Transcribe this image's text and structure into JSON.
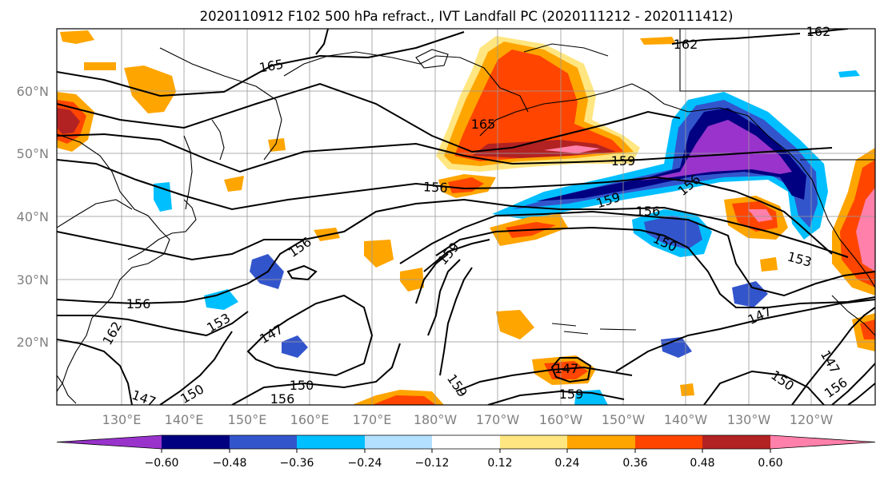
{
  "title": "2020110912 F102 500 hPa refract., IVT Landfall PC (2020111212 - 2020111412)",
  "lat_labels": [
    "60°N",
    "50°N",
    "40°N",
    "30°N",
    "20°N"
  ],
  "lon_labels": [
    "130°E",
    "140°E",
    "150°E",
    "160°E",
    "170°E",
    "180°W",
    "170°W",
    "160°W",
    "150°W",
    "140°W",
    "130°W",
    "120°W"
  ],
  "contour_labels": [
    "165",
    "162",
    "162",
    "165",
    "159",
    "156",
    "156",
    "159",
    "156",
    "156",
    "159",
    "153",
    "150",
    "153",
    "147",
    "147",
    "156",
    "162",
    "147",
    "150",
    "150",
    "156",
    "159",
    "159",
    "147",
    "150",
    "147",
    "156"
  ],
  "colorbar": {
    "ticks": [
      "−0.60",
      "−0.48",
      "−0.36",
      "−0.24",
      "−0.12",
      "0.12",
      "0.24",
      "0.36",
      "0.48",
      "0.60"
    ],
    "colors": [
      "#9933cc",
      "#000080",
      "#3355cc",
      "#00bfff",
      "#b3e0ff",
      "#ffffff",
      "#ffe680",
      "#ffa500",
      "#ff4500",
      "#b22222",
      "#ff80aa"
    ]
  },
  "field_colors": {
    "pos1": "#ffe680",
    "pos2": "#ffa500",
    "pos3": "#ff4500",
    "pos4": "#b22222",
    "pos5": "#ff80aa",
    "neg1": "#b3e0ff",
    "neg2": "#00bfff",
    "neg3": "#3355cc",
    "neg4": "#000080",
    "neg5": "#9933cc"
  }
}
